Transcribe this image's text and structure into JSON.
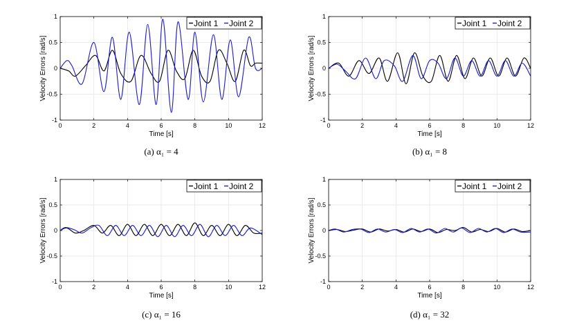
{
  "chart_data": [
    {
      "type": "line",
      "caption": "(a) α₁ = 4",
      "xlabel": "Time [s]",
      "ylabel": "Velocity Errors [rad/s]",
      "xlim": [
        0,
        12
      ],
      "ylim": [
        -1,
        1
      ],
      "xticks": [
        "0",
        "2",
        "4",
        "6",
        "8",
        "10",
        "12"
      ],
      "yticks": [
        "-1",
        "-0.5",
        "0",
        "0.5",
        "1"
      ],
      "grid": true,
      "legend_position": "top-right",
      "series": [
        {
          "name": "Joint 1",
          "color": "#000000",
          "x": [
            0,
            0.5,
            0.9,
            1.5,
            2.1,
            2.6,
            3.1,
            3.6,
            4.2,
            4.8,
            5.4,
            5.9,
            6.4,
            6.9,
            7.4,
            7.9,
            8.4,
            8.9,
            9.4,
            9.9,
            10.4,
            10.9,
            11.3,
            11.6,
            12
          ],
          "values": [
            0,
            -0.05,
            -0.15,
            0.05,
            0.25,
            -0.05,
            0.35,
            -0.1,
            -0.25,
            0.25,
            -0.1,
            -0.25,
            0.35,
            -0.05,
            -0.2,
            0.35,
            -0.15,
            -0.25,
            0.35,
            0.1,
            -0.25,
            0.35,
            0.05,
            0.1,
            0.1
          ]
        },
        {
          "name": "Joint 2",
          "color": "#1a1acc",
          "x": [
            0,
            0.4,
            0.7,
            1.3,
            2.0,
            2.6,
            3.1,
            3.6,
            4.1,
            4.7,
            5.2,
            5.7,
            6.1,
            6.6,
            7.0,
            7.6,
            8.0,
            8.5,
            9.1,
            9.6,
            10.1,
            10.6,
            11.2,
            11.6,
            12
          ],
          "values": [
            0,
            0.15,
            0.05,
            -0.3,
            0.5,
            -0.45,
            0.6,
            -0.6,
            0.7,
            -0.7,
            0.85,
            -0.7,
            0.95,
            -0.85,
            0.9,
            -0.6,
            0.7,
            -0.65,
            0.65,
            -0.6,
            0.55,
            -0.55,
            0.6,
            0.0,
            0.0
          ]
        }
      ]
    },
    {
      "type": "line",
      "caption": "(b) α₁ = 8",
      "xlabel": "Time [s]",
      "ylabel": "Velocity Errors [rad/s]",
      "xlim": [
        0,
        12
      ],
      "ylim": [
        -1,
        1
      ],
      "xticks": [
        "0",
        "2",
        "4",
        "6",
        "8",
        "10",
        "12"
      ],
      "yticks": [
        "-1",
        "-0.5",
        "0",
        "0.5",
        "1"
      ],
      "grid": true,
      "legend_position": "top-right",
      "series": [
        {
          "name": "Joint 1",
          "color": "#000000",
          "x": [
            0,
            0.6,
            1.2,
            1.8,
            2.4,
            3.0,
            3.5,
            4.1,
            4.6,
            5.1,
            5.6,
            6.1,
            6.6,
            7.1,
            7.6,
            8.1,
            8.6,
            9.1,
            9.6,
            10.1,
            10.6,
            11.1,
            11.6,
            12
          ],
          "values": [
            0,
            0.1,
            -0.15,
            0.15,
            -0.1,
            0.2,
            -0.25,
            0.3,
            -0.3,
            0.3,
            -0.15,
            -0.25,
            0.25,
            -0.25,
            0.25,
            -0.2,
            0.2,
            -0.15,
            0.2,
            -0.15,
            0.2,
            -0.15,
            0.2,
            0.0
          ]
        },
        {
          "name": "Joint 2",
          "color": "#1a1acc",
          "x": [
            0,
            0.5,
            1.0,
            1.6,
            2.2,
            2.8,
            3.3,
            3.9,
            4.4,
            5.0,
            5.5,
            6.0,
            6.5,
            7.0,
            7.5,
            8.0,
            8.5,
            9.0,
            9.5,
            10.0,
            10.5,
            11.0,
            11.5,
            12
          ],
          "values": [
            0,
            0.08,
            -0.05,
            -0.2,
            0.2,
            -0.2,
            0.15,
            0.05,
            -0.25,
            0.25,
            -0.2,
            0.15,
            0.1,
            -0.2,
            0.2,
            -0.15,
            0.15,
            -0.15,
            0.15,
            -0.15,
            0.15,
            -0.15,
            0.1,
            -0.15
          ]
        }
      ]
    },
    {
      "type": "line",
      "caption": "(c) α₁ = 16",
      "xlabel": "Time [s]",
      "ylabel": "Velocity Errors [rad/s]",
      "xlim": [
        0,
        12
      ],
      "ylim": [
        -1,
        1
      ],
      "xticks": [
        "0",
        "2",
        "4",
        "6",
        "8",
        "10",
        "12"
      ],
      "yticks": [
        "-1",
        "-0.5",
        "0",
        "0.5",
        "1"
      ],
      "grid": true,
      "legend_position": "top-right",
      "series": [
        {
          "name": "Joint 1",
          "color": "#000000",
          "x": [
            0,
            0.4,
            0.9,
            1.4,
            2.0,
            2.5,
            3.0,
            3.5,
            4.0,
            4.5,
            5.0,
            5.5,
            6.0,
            6.5,
            7.0,
            7.5,
            8.0,
            8.5,
            9.0,
            9.5,
            10.0,
            10.5,
            11.0,
            11.5,
            12
          ],
          "values": [
            0,
            0.05,
            -0.05,
            0.0,
            0.1,
            -0.05,
            0.1,
            -0.1,
            0.12,
            -0.1,
            0.12,
            -0.1,
            0.12,
            -0.1,
            0.12,
            -0.1,
            0.15,
            -0.1,
            0.1,
            -0.1,
            0.12,
            -0.1,
            0.1,
            -0.05,
            -0.05
          ]
        },
        {
          "name": "Joint 2",
          "color": "#1a1acc",
          "x": [
            0,
            0.3,
            0.8,
            1.3,
            1.8,
            2.3,
            2.8,
            3.3,
            3.8,
            4.3,
            4.8,
            5.3,
            5.8,
            6.3,
            6.8,
            7.3,
            7.8,
            8.3,
            8.8,
            9.3,
            9.8,
            10.3,
            10.8,
            11.3,
            12
          ],
          "values": [
            0,
            0.06,
            0.02,
            -0.05,
            0.05,
            0.1,
            -0.1,
            0.1,
            -0.1,
            0.1,
            -0.1,
            0.1,
            -0.12,
            0.1,
            -0.12,
            0.1,
            -0.1,
            0.12,
            -0.12,
            0.1,
            -0.1,
            0.1,
            -0.1,
            0.05,
            -0.08
          ]
        }
      ]
    },
    {
      "type": "line",
      "caption": "(d) α₁ = 32",
      "xlabel": "Time [s]",
      "ylabel": "Velocity Errors [rad/s]",
      "xlim": [
        0,
        12
      ],
      "ylim": [
        -1,
        1
      ],
      "xticks": [
        "0",
        "2",
        "4",
        "6",
        "8",
        "10",
        "12"
      ],
      "yticks": [
        "-1",
        "-0.5",
        "0",
        "0.5",
        "1"
      ],
      "grid": true,
      "legend_position": "top-right",
      "series": [
        {
          "name": "Joint 1",
          "color": "#000000",
          "x": [
            0,
            0.5,
            1.0,
            1.5,
            2.0,
            2.5,
            3.0,
            3.5,
            4.0,
            4.5,
            5.0,
            5.5,
            6.0,
            6.5,
            7.0,
            7.5,
            8.0,
            8.5,
            9.0,
            9.5,
            10.0,
            10.5,
            11.0,
            11.5,
            12
          ],
          "values": [
            0,
            0.02,
            -0.02,
            0.01,
            0.03,
            -0.03,
            0.03,
            -0.01,
            0.02,
            -0.03,
            0.03,
            -0.02,
            0.03,
            -0.04,
            0.02,
            0.0,
            0.06,
            -0.03,
            0.02,
            -0.02,
            0.04,
            -0.03,
            0.03,
            -0.02,
            0.0
          ]
        },
        {
          "name": "Joint 2",
          "color": "#1a1acc",
          "x": [
            0,
            0.4,
            0.9,
            1.4,
            1.9,
            2.4,
            2.9,
            3.4,
            3.9,
            4.4,
            4.9,
            5.4,
            5.9,
            6.4,
            6.9,
            7.4,
            7.9,
            8.4,
            8.9,
            9.4,
            9.9,
            10.4,
            10.9,
            11.4,
            12
          ],
          "values": [
            0,
            0.03,
            -0.03,
            0.02,
            0.03,
            -0.04,
            0.03,
            -0.03,
            0.02,
            -0.04,
            0.04,
            -0.03,
            0.03,
            -0.05,
            0.04,
            -0.03,
            0.05,
            -0.04,
            0.04,
            -0.03,
            0.04,
            -0.04,
            0.03,
            -0.03,
            -0.03
          ]
        }
      ]
    }
  ]
}
